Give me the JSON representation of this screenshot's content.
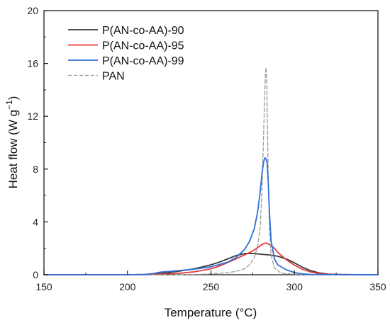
{
  "chart_data": {
    "type": "line",
    "title": "",
    "xlabel": "Temperature (°C)",
    "ylabel_main": "Heat flow (W g",
    "ylabel_sup": "−1",
    "ylabel_close": ")",
    "xlim": [
      150,
      350
    ],
    "ylim": [
      0,
      20
    ],
    "xticks": [
      150,
      200,
      250,
      300,
      350
    ],
    "yticks": [
      0,
      4,
      8,
      12,
      16,
      20
    ],
    "xtick_labels": [
      "150",
      "200",
      "250",
      "300",
      "350"
    ],
    "ytick_labels": [
      "0",
      "4",
      "8",
      "12",
      "16",
      "20"
    ],
    "grid": false,
    "legend_position": "top-left",
    "series": [
      {
        "name": "P(AN-co-AA)-90",
        "color": "#3a3a3a",
        "dash": "solid",
        "x": [
          150,
          200,
          210,
          220,
          230,
          240,
          250,
          255,
          260,
          265,
          270,
          273,
          276,
          280,
          285,
          290,
          295,
          300,
          305,
          310,
          315,
          320,
          325,
          330,
          340,
          350
        ],
        "y": [
          0,
          0,
          0.02,
          0.1,
          0.25,
          0.45,
          0.75,
          0.95,
          1.2,
          1.45,
          1.6,
          1.62,
          1.6,
          1.55,
          1.5,
          1.4,
          1.2,
          0.9,
          0.55,
          0.3,
          0.13,
          0.05,
          0.02,
          0.01,
          0,
          0
        ]
      },
      {
        "name": "P(AN-co-AA)-95",
        "color": "#e23b3b",
        "dash": "solid",
        "x": [
          150,
          200,
          210,
          220,
          230,
          240,
          250,
          255,
          260,
          265,
          270,
          275,
          278,
          280,
          282,
          283,
          285,
          288,
          290,
          295,
          300,
          305,
          310,
          315,
          320,
          330,
          350
        ],
        "y": [
          0,
          0,
          0.01,
          0.04,
          0.1,
          0.22,
          0.45,
          0.65,
          0.92,
          1.2,
          1.5,
          1.8,
          2.05,
          2.25,
          2.38,
          2.4,
          2.3,
          2.0,
          1.7,
          1.15,
          0.72,
          0.4,
          0.2,
          0.08,
          0.03,
          0.01,
          0
        ]
      },
      {
        "name": "P(AN-co-AA)-99",
        "color": "#2f6fd6",
        "dash": "solid",
        "x": [
          150,
          200,
          210,
          215,
          220,
          230,
          240,
          250,
          260,
          265,
          270,
          273,
          276,
          278,
          279.5,
          280.5,
          281.5,
          282.3,
          283,
          283.7,
          284.3,
          285,
          286,
          288,
          290,
          295,
          300,
          305,
          310,
          320,
          350
        ],
        "y": [
          0,
          0,
          0.02,
          0.08,
          0.2,
          0.3,
          0.42,
          0.6,
          0.95,
          1.3,
          1.9,
          2.5,
          3.5,
          4.8,
          6.3,
          7.6,
          8.5,
          8.85,
          8.8,
          8.4,
          7.0,
          4.8,
          2.6,
          1.2,
          0.75,
          0.38,
          0.16,
          0.06,
          0.02,
          0.01,
          0
        ]
      },
      {
        "name": "PAN",
        "color": "#9a9a9a",
        "dash": "dashed",
        "x": [
          150,
          230,
          240,
          250,
          260,
          265,
          270,
          273,
          276,
          278,
          279.5,
          280.5,
          281.3,
          282,
          282.6,
          283,
          283.4,
          283.8,
          284.3,
          285,
          286,
          288,
          292,
          300,
          320,
          350
        ],
        "y": [
          0,
          0,
          0.02,
          0.06,
          0.15,
          0.25,
          0.45,
          0.75,
          1.3,
          2.2,
          3.6,
          6.2,
          9.6,
          12.8,
          15.2,
          15.7,
          14.8,
          11.5,
          7.2,
          3.6,
          1.5,
          0.5,
          0.12,
          0.03,
          0,
          0
        ]
      }
    ]
  }
}
